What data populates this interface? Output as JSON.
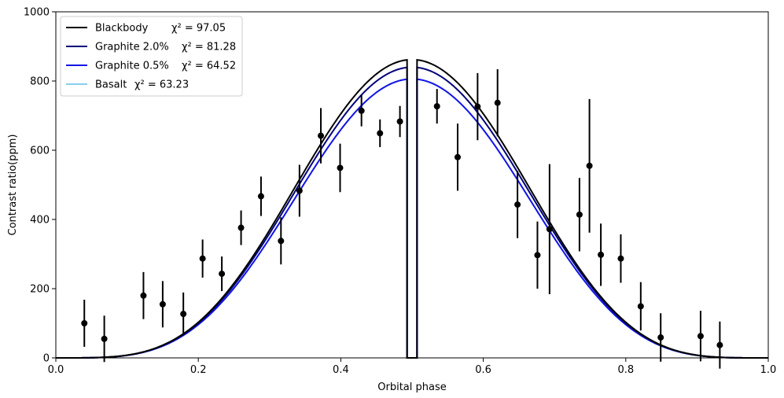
{
  "chart_data": {
    "type": "line",
    "title": "",
    "xlabel": "Orbital phase",
    "ylabel": "Contrast ratio(ppm)",
    "xlim": [
      0.0,
      1.0
    ],
    "ylim": [
      0,
      1000
    ],
    "x_ticks": [
      "0.0",
      "0.2",
      "0.4",
      "0.6",
      "0.8",
      "1.0"
    ],
    "y_ticks": [
      "0",
      "200",
      "400",
      "600",
      "800",
      "1000"
    ],
    "grid": false,
    "legend_position": "top-left",
    "eclipse": {
      "start": 0.493,
      "end": 0.507
    },
    "series": [
      {
        "name": "Blackbody",
        "chi_label": "χ² = 97.05",
        "color": "#000000",
        "amplitude": 862
      },
      {
        "name": "Graphite 2.0%",
        "chi_label": "χ² = 81.28",
        "color": "#00007a",
        "amplitude": 840
      },
      {
        "name": "Graphite 0.5%",
        "chi_label": "χ² = 64.52",
        "color": "#1515e6",
        "amplitude": 806
      },
      {
        "name": "Basalt",
        "chi_label": "χ² = 63.23",
        "color": "#87cef0",
        "amplitude": 806
      }
    ],
    "observations": [
      {
        "x": 0.04,
        "y": 100,
        "err": 68
      },
      {
        "x": 0.068,
        "y": 55,
        "err": 67
      },
      {
        "x": 0.123,
        "y": 180,
        "err": 68
      },
      {
        "x": 0.15,
        "y": 155,
        "err": 67
      },
      {
        "x": 0.179,
        "y": 127,
        "err": 62
      },
      {
        "x": 0.206,
        "y": 287,
        "err": 55
      },
      {
        "x": 0.233,
        "y": 243,
        "err": 50
      },
      {
        "x": 0.26,
        "y": 376,
        "err": 50
      },
      {
        "x": 0.288,
        "y": 467,
        "err": 57
      },
      {
        "x": 0.316,
        "y": 338,
        "err": 68
      },
      {
        "x": 0.342,
        "y": 483,
        "err": 75
      },
      {
        "x": 0.372,
        "y": 642,
        "err": 80
      },
      {
        "x": 0.399,
        "y": 549,
        "err": 70
      },
      {
        "x": 0.429,
        "y": 714,
        "err": 45
      },
      {
        "x": 0.455,
        "y": 649,
        "err": 40
      },
      {
        "x": 0.483,
        "y": 683,
        "err": 45
      },
      {
        "x": 0.535,
        "y": 727,
        "err": 50
      },
      {
        "x": 0.564,
        "y": 580,
        "err": 97
      },
      {
        "x": 0.592,
        "y": 726,
        "err": 97
      },
      {
        "x": 0.62,
        "y": 737,
        "err": 97
      },
      {
        "x": 0.648,
        "y": 443,
        "err": 97
      },
      {
        "x": 0.676,
        "y": 297,
        "err": 97
      },
      {
        "x": 0.693,
        "y": 372,
        "err": 188
      },
      {
        "x": 0.735,
        "y": 414,
        "err": 106
      },
      {
        "x": 0.749,
        "y": 555,
        "err": 193
      },
      {
        "x": 0.765,
        "y": 298,
        "err": 90
      },
      {
        "x": 0.793,
        "y": 287,
        "err": 70
      },
      {
        "x": 0.821,
        "y": 149,
        "err": 70
      },
      {
        "x": 0.849,
        "y": 59,
        "err": 70
      },
      {
        "x": 0.905,
        "y": 63,
        "err": 73
      },
      {
        "x": 0.932,
        "y": 37,
        "err": 68
      }
    ]
  }
}
